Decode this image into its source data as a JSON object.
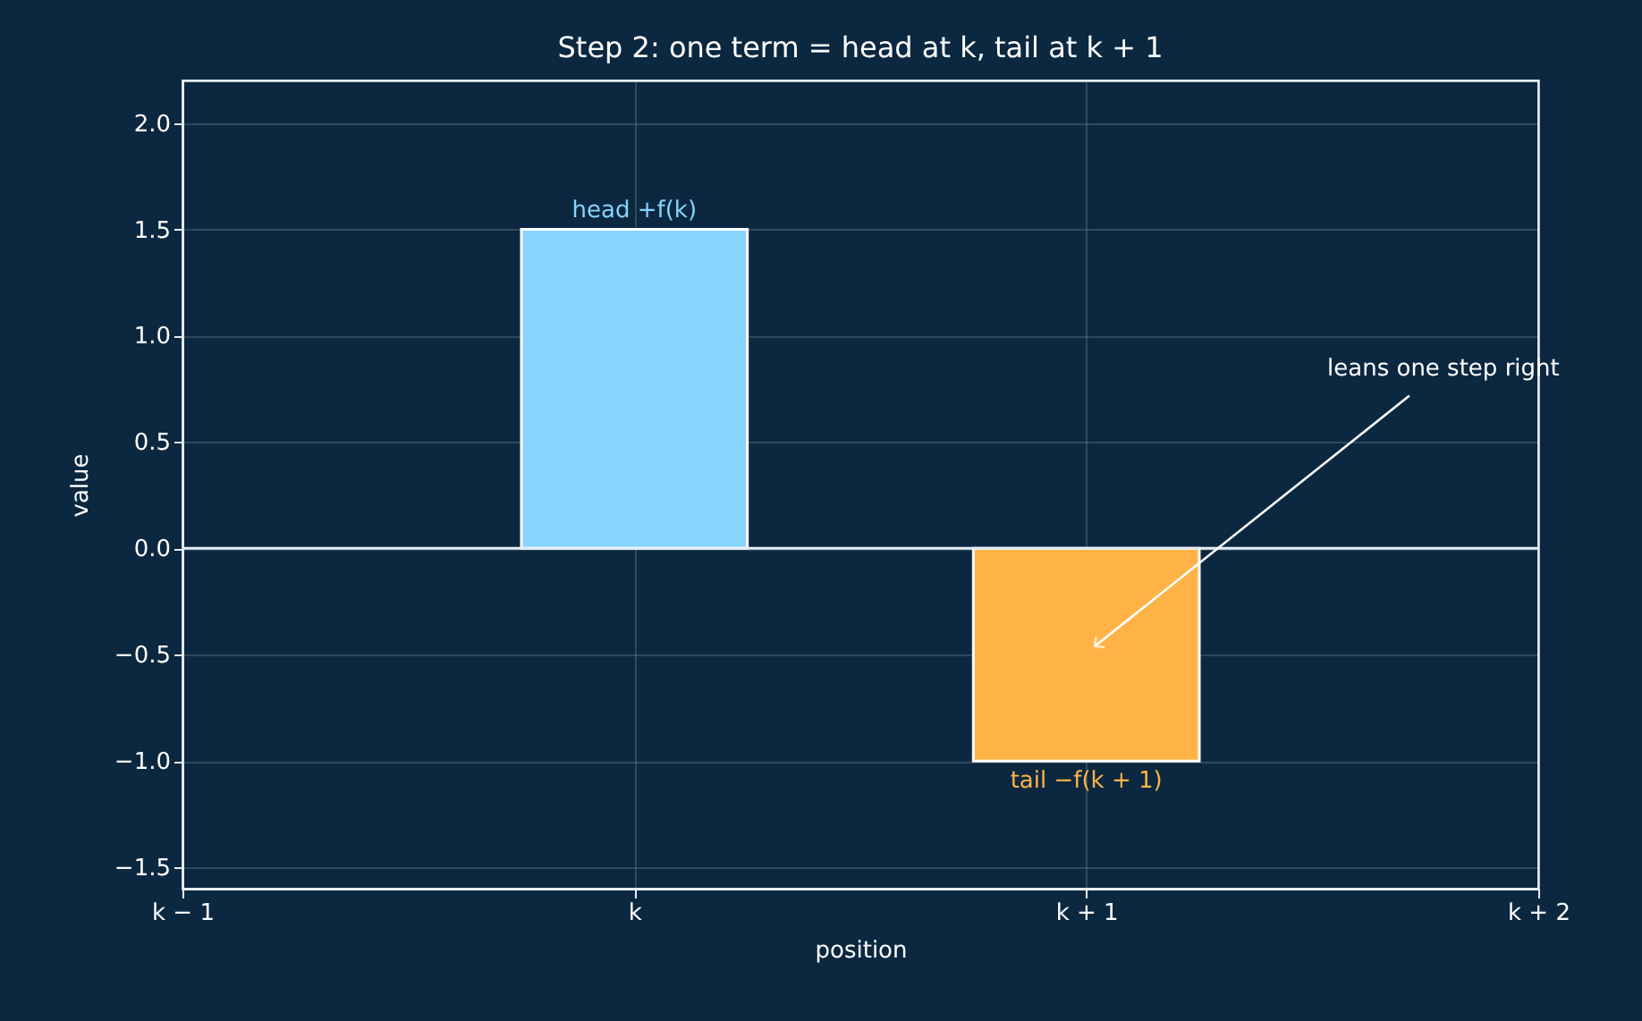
{
  "chart_data": {
    "type": "bar",
    "title": "Step 2: one term = head at k, tail at k + 1",
    "xlabel": "position",
    "ylabel": "value",
    "categories": [
      "k − 1",
      "k",
      "k + 1",
      "k + 2"
    ],
    "values": [
      null,
      1.5,
      -1,
      null
    ],
    "colors": [
      "#87d4ff",
      "#87d4ff",
      "#ffb347",
      "#ffb347"
    ],
    "ylim": [
      -1.6,
      2.2
    ],
    "yticks": [
      {
        "value": -1.5,
        "label": "−1.5"
      },
      {
        "value": -1,
        "label": "−1.0"
      },
      {
        "value": -0.5,
        "label": "−0.5"
      },
      {
        "value": 0,
        "label": "0.0"
      },
      {
        "value": 0.5,
        "label": "0.5"
      },
      {
        "value": 1,
        "label": "1.0"
      },
      {
        "value": 1.5,
        "label": "1.5"
      },
      {
        "value": 2,
        "label": "2.0"
      }
    ],
    "ref_lines": [
      {
        "axis": "y",
        "value": 0,
        "color": "#e6eef5"
      }
    ],
    "annotations": [
      {
        "text": "head +f(k)",
        "x": "k",
        "y": 1.5
      },
      {
        "text": "tail −f(k + 1)",
        "x": "k + 1",
        "y": -1
      },
      "leans one step right"
    ],
    "grid": true
  }
}
